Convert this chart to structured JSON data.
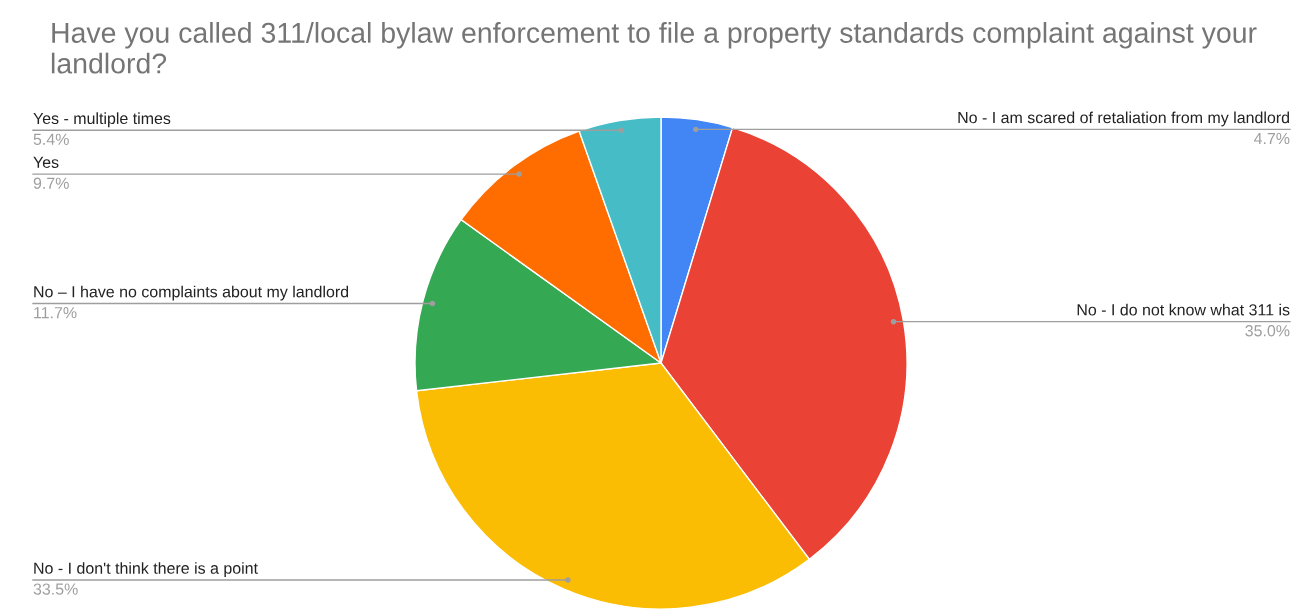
{
  "chart_data": {
    "type": "pie",
    "title": "Have you called 311/local bylaw enforcement to file a property standards complaint against your landlord?",
    "categories": [
      "No - I am scared of retaliation from my landlord",
      "No - I do not know what 311 is",
      "No - I don't think there is a point",
      "No – I have no complaints about my landlord",
      "Yes",
      "Yes - multiple times"
    ],
    "values": [
      4.7,
      35.0,
      33.5,
      11.7,
      9.7,
      5.4
    ],
    "colors": [
      "#4285f4",
      "#ea4335",
      "#fbbc04",
      "#34a853",
      "#ff6d01",
      "#46bdc6"
    ],
    "value_labels": [
      "4.7%",
      "35.0%",
      "33.5%",
      "11.7%",
      "9.7%",
      "5.4%"
    ]
  }
}
